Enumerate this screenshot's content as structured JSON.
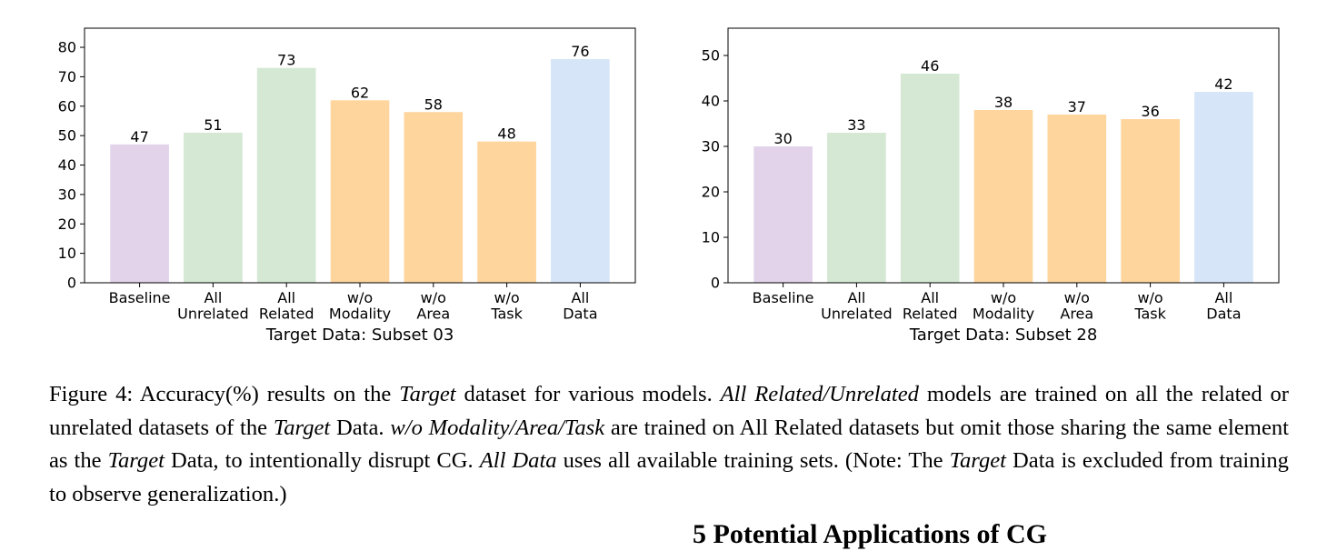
{
  "chart_data": [
    {
      "type": "bar",
      "title": "",
      "xlabel": "Target Data: Subset 03",
      "ylabel": "",
      "categories": [
        [
          "Baseline"
        ],
        [
          "All",
          "Unrelated"
        ],
        [
          "All",
          "Related"
        ],
        [
          "w/o",
          "Modality"
        ],
        [
          "w/o",
          "Area"
        ],
        [
          "w/o",
          "Task"
        ],
        [
          "All",
          "Data"
        ]
      ],
      "values": [
        47,
        51,
        73,
        62,
        58,
        48,
        76
      ],
      "data_labels": [
        "47",
        "51",
        "73",
        "62",
        "58",
        "48",
        "76"
      ],
      "colors": [
        "#e2d3ea",
        "#d5e8d4",
        "#d5e8d4",
        "#ffd59e",
        "#ffd59e",
        "#ffd59e",
        "#d6e6f8"
      ],
      "ylim": [
        0,
        86.5
      ],
      "yticks": [
        0,
        10,
        20,
        30,
        40,
        50,
        60,
        70,
        80
      ],
      "grid": false
    },
    {
      "type": "bar",
      "title": "",
      "xlabel": "Target Data: Subset 28",
      "ylabel": "",
      "categories": [
        [
          "Baseline"
        ],
        [
          "All",
          "Unrelated"
        ],
        [
          "All",
          "Related"
        ],
        [
          "w/o",
          "Modality"
        ],
        [
          "w/o",
          "Area"
        ],
        [
          "w/o",
          "Task"
        ],
        [
          "All",
          "Data"
        ]
      ],
      "values": [
        30,
        33,
        46,
        38,
        37,
        36,
        42
      ],
      "data_labels": [
        "30",
        "33",
        "46",
        "38",
        "37",
        "36",
        "42"
      ],
      "colors": [
        "#e2d3ea",
        "#d5e8d4",
        "#d5e8d4",
        "#ffd59e",
        "#ffd59e",
        "#ffd59e",
        "#d6e6f8"
      ],
      "ylim": [
        0,
        56
      ],
      "yticks": [
        0,
        10,
        20,
        30,
        40,
        50
      ],
      "grid": false
    }
  ],
  "caption": {
    "segments": [
      {
        "text": "Figure 4: Accuracy(%) results on the ",
        "italic": false
      },
      {
        "text": "Target",
        "italic": true
      },
      {
        "text": " dataset for various models. ",
        "italic": false
      },
      {
        "text": "All Related/Unrelated",
        "italic": true
      },
      {
        "text": " models are trained on all the related or unrelated datasets of the ",
        "italic": false
      },
      {
        "text": "Target",
        "italic": true
      },
      {
        "text": " Data. ",
        "italic": false
      },
      {
        "text": "w/o Modality/Area/Task",
        "italic": true
      },
      {
        "text": " are trained on All Related datasets but omit those sharing the same element as the ",
        "italic": false
      },
      {
        "text": "Target",
        "italic": true
      },
      {
        "text": " Data, to intentionally disrupt CG. ",
        "italic": false
      },
      {
        "text": "All Data",
        "italic": true
      },
      {
        "text": " uses all available training sets. (Note: The ",
        "italic": false
      },
      {
        "text": "Target",
        "italic": true
      },
      {
        "text": " Data is excluded from training to observe generalization.)",
        "italic": false
      }
    ]
  },
  "next_section_heading": "5 Potential Applications of CG"
}
